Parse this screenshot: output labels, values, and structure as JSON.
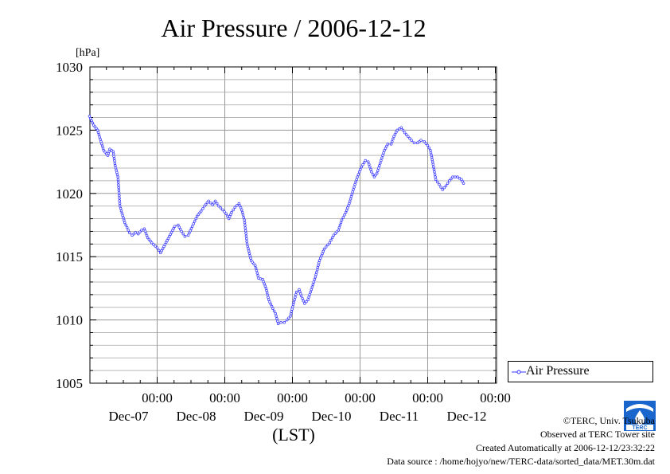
{
  "chart_data": {
    "type": "line",
    "title": "Air Pressure / 2006-12-12",
    "ylabel": "[hPa]",
    "xlabel": "(LST)",
    "ylim": [
      1005,
      1030
    ],
    "yticks": [
      "1030",
      "1025",
      "1020",
      "1015",
      "1010",
      "1005"
    ],
    "xlim": [
      0,
      6
    ],
    "x_ticks": [
      {
        "x": 1,
        "time": "00:00",
        "date": "Dec-07"
      },
      {
        "x": 2,
        "time": "00:00",
        "date": "Dec-08"
      },
      {
        "x": 3,
        "time": "00:00",
        "date": "Dec-09"
      },
      {
        "x": 4,
        "time": "00:00",
        "date": "Dec-10"
      },
      {
        "x": 5,
        "time": "00:00",
        "date": "Dec-11"
      },
      {
        "x": 6,
        "time": "00:00",
        "date": "Dec-12"
      }
    ],
    "grid": true,
    "legend_position": "right",
    "x_unit": "days from the start of the plotted period (2006-12-06 00:00 LST)",
    "series": [
      {
        "name": "Air Pressure",
        "color": "#3333ff",
        "marker": "open-circle",
        "points": [
          [
            0.0,
            1026.1
          ],
          [
            0.06,
            1025.4
          ],
          [
            0.12,
            1025.0
          ],
          [
            0.17,
            1024.1
          ],
          [
            0.21,
            1023.4
          ],
          [
            0.27,
            1023.0
          ],
          [
            0.3,
            1023.5
          ],
          [
            0.35,
            1023.3
          ],
          [
            0.38,
            1022.2
          ],
          [
            0.42,
            1021.3
          ],
          [
            0.45,
            1019.0
          ],
          [
            0.52,
            1017.7
          ],
          [
            0.59,
            1016.9
          ],
          [
            0.63,
            1016.7
          ],
          [
            0.68,
            1016.9
          ],
          [
            0.72,
            1016.8
          ],
          [
            0.77,
            1017.1
          ],
          [
            0.81,
            1017.2
          ],
          [
            0.86,
            1016.5
          ],
          [
            0.92,
            1016.1
          ],
          [
            1.0,
            1015.7
          ],
          [
            1.05,
            1015.3
          ],
          [
            1.1,
            1015.8
          ],
          [
            1.18,
            1016.6
          ],
          [
            1.26,
            1017.4
          ],
          [
            1.31,
            1017.5
          ],
          [
            1.36,
            1017.0
          ],
          [
            1.41,
            1016.6
          ],
          [
            1.46,
            1016.7
          ],
          [
            1.52,
            1017.4
          ],
          [
            1.59,
            1018.2
          ],
          [
            1.65,
            1018.6
          ],
          [
            1.7,
            1019.0
          ],
          [
            1.76,
            1019.4
          ],
          [
            1.82,
            1019.1
          ],
          [
            1.86,
            1019.4
          ],
          [
            1.91,
            1019.0
          ],
          [
            1.97,
            1018.7
          ],
          [
            2.02,
            1018.4
          ],
          [
            2.06,
            1018.0
          ],
          [
            2.1,
            1018.5
          ],
          [
            2.15,
            1018.9
          ],
          [
            2.21,
            1019.2
          ],
          [
            2.25,
            1018.7
          ],
          [
            2.29,
            1017.9
          ],
          [
            2.33,
            1016.0
          ],
          [
            2.39,
            1014.7
          ],
          [
            2.45,
            1014.3
          ],
          [
            2.5,
            1013.3
          ],
          [
            2.56,
            1013.2
          ],
          [
            2.61,
            1012.5
          ],
          [
            2.65,
            1011.6
          ],
          [
            2.71,
            1010.9
          ],
          [
            2.75,
            1010.5
          ],
          [
            2.79,
            1009.7
          ],
          [
            2.83,
            1009.8
          ],
          [
            2.88,
            1009.8
          ],
          [
            2.92,
            1010.0
          ],
          [
            2.97,
            1010.3
          ],
          [
            3.02,
            1011.4
          ],
          [
            3.06,
            1012.2
          ],
          [
            3.1,
            1012.4
          ],
          [
            3.13,
            1011.9
          ],
          [
            3.18,
            1011.3
          ],
          [
            3.23,
            1011.6
          ],
          [
            3.28,
            1012.4
          ],
          [
            3.34,
            1013.4
          ],
          [
            3.4,
            1014.7
          ],
          [
            3.47,
            1015.6
          ],
          [
            3.55,
            1016.1
          ],
          [
            3.61,
            1016.7
          ],
          [
            3.68,
            1017.1
          ],
          [
            3.73,
            1017.9
          ],
          [
            3.79,
            1018.5
          ],
          [
            3.84,
            1019.2
          ],
          [
            3.9,
            1020.3
          ],
          [
            3.96,
            1021.3
          ],
          [
            4.02,
            1022.1
          ],
          [
            4.08,
            1022.6
          ],
          [
            4.12,
            1022.5
          ],
          [
            4.17,
            1021.7
          ],
          [
            4.21,
            1021.3
          ],
          [
            4.25,
            1021.6
          ],
          [
            4.31,
            1022.6
          ],
          [
            4.36,
            1023.4
          ],
          [
            4.41,
            1023.9
          ],
          [
            4.46,
            1023.9
          ],
          [
            4.5,
            1024.5
          ],
          [
            4.55,
            1025.0
          ],
          [
            4.61,
            1025.2
          ],
          [
            4.66,
            1024.8
          ],
          [
            4.71,
            1024.5
          ],
          [
            4.76,
            1024.2
          ],
          [
            4.8,
            1024.0
          ],
          [
            4.85,
            1024.0
          ],
          [
            4.9,
            1024.2
          ],
          [
            4.95,
            1024.1
          ],
          [
            5.0,
            1023.8
          ],
          [
            5.04,
            1023.4
          ],
          [
            5.08,
            1022.3
          ],
          [
            5.12,
            1021.1
          ],
          [
            5.17,
            1020.7
          ],
          [
            5.22,
            1020.3
          ],
          [
            5.27,
            1020.6
          ],
          [
            5.32,
            1021.0
          ],
          [
            5.37,
            1021.3
          ],
          [
            5.44,
            1021.3
          ],
          [
            5.5,
            1021.1
          ],
          [
            5.53,
            1020.8
          ]
        ]
      }
    ]
  },
  "legend": {
    "label": "Air Pressure"
  },
  "credits": {
    "copyright": "©TERC, Univ. Tsukuba",
    "observed": "Observed at TERC Tower site",
    "created": "Created Automatically at 2006-12-12/23:32:22",
    "source": "Data source : /home/hojyo/new/TERC-data/sorted_data/MET.30m.dat"
  },
  "logo": {
    "text": "TERC",
    "color": "#1a66cc"
  }
}
